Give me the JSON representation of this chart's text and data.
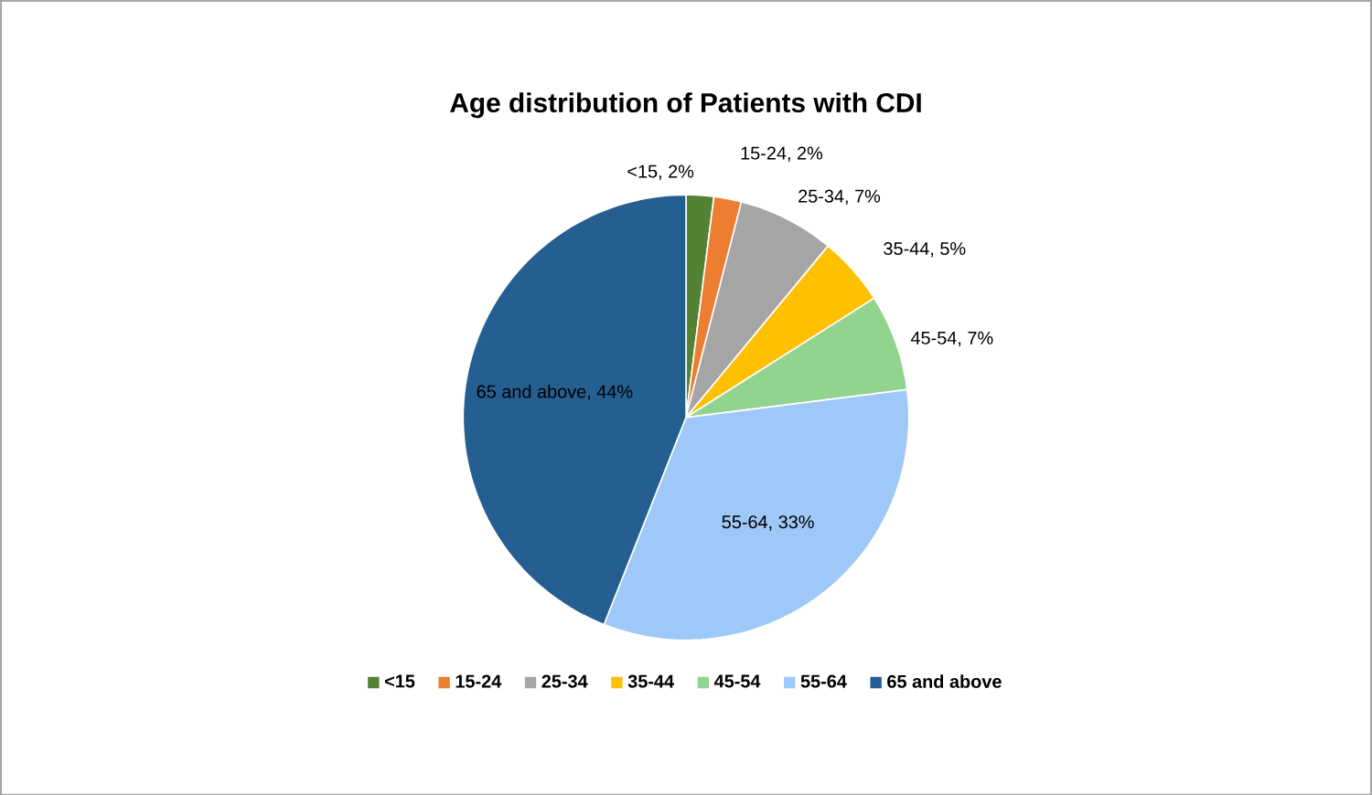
{
  "chart_data": {
    "type": "pie",
    "title": "Age distribution of Patients with CDI",
    "categories": [
      "<15",
      "15-24",
      "25-34",
      "35-44",
      "45-54",
      "55-64",
      "65 and above"
    ],
    "values": [
      2,
      2,
      7,
      5,
      7,
      33,
      44
    ],
    "value_labels": [
      "<15, 2%",
      "15-24, 2%",
      "25-34, 7%",
      "35-44, 5%",
      "45-54, 7%",
      "55-64, 33%",
      "65 and above, 44%"
    ],
    "colors": [
      "#548235",
      "#ed7d31",
      "#a5a5a5",
      "#ffc000",
      "#92d38e",
      "#9dc8f8",
      "#255e91"
    ],
    "legend": "bottom"
  }
}
